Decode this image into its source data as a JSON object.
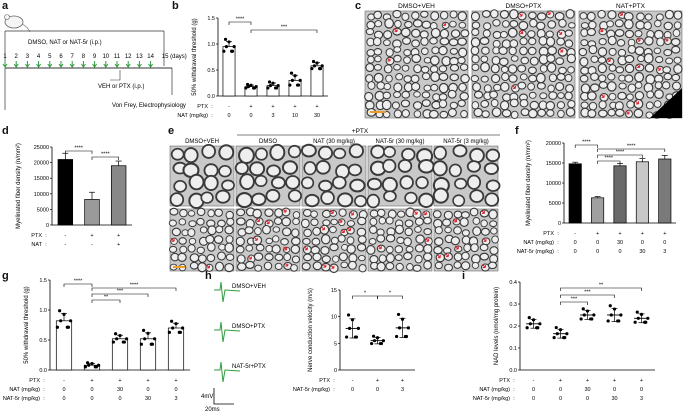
{
  "panels": {
    "a": {
      "label": "a",
      "treatment": "DMSO, NAT or NAT-5r (i.p.)",
      "days": [
        "1",
        "2",
        "3",
        "4",
        "5",
        "6",
        "7",
        "8",
        "9",
        "10",
        "11",
        "12",
        "13",
        "14",
        "15 (days)"
      ],
      "ptx": "VEH or PTX (i.p.)",
      "test": "Von Frey, Electrophysiology"
    },
    "b": {
      "label": "b",
      "ylabel": "50% withdrawal threshold (g)",
      "yticks": [
        "0.0",
        "0.5",
        "1.0",
        "1.5"
      ],
      "row1_label": "PTX",
      "row1": [
        "-",
        "+",
        "+",
        "+",
        "+"
      ],
      "row2_label": "NAT (mg/kg)",
      "row2": [
        "0",
        "0",
        "3",
        "10",
        "30"
      ],
      "sig": [
        "****",
        "***"
      ]
    },
    "c": {
      "label": "c",
      "titles": [
        "DMSO+VEH",
        "DMSO+PTX",
        "NAT+PTX"
      ]
    },
    "d": {
      "label": "d",
      "ylabel": "Myelinated fiber density (n/mm²)",
      "yticks": [
        "0",
        "5000",
        "10000",
        "15000",
        "20000",
        "25000"
      ],
      "row1_label": "PTX",
      "row1": [
        "-",
        "+",
        "+"
      ],
      "row2_label": "NAT",
      "row2": [
        "-",
        "-",
        "+"
      ],
      "sig": [
        "****",
        "****"
      ]
    },
    "e": {
      "label": "e",
      "group": "+PTX",
      "titles": [
        "DMSO+VEH",
        "DMSO",
        "NAT (30 mg/kg)",
        "NAT-5r (30 mg/kg)",
        "NAT-5r (3 mg/kg)"
      ]
    },
    "f": {
      "label": "f",
      "ylabel": "Myelinated fiber density (n/mm²)",
      "yticks": [
        "0",
        "5000",
        "10000",
        "15000",
        "20000"
      ],
      "row1_label": "PTX",
      "row1": [
        "-",
        "+",
        "+",
        "+",
        "+"
      ],
      "row2_label": "NAT (mg/kg)",
      "row2": [
        "0",
        "0",
        "30",
        "0",
        "0"
      ],
      "row3_label": "NAT-5r (mg/kg)",
      "row3": [
        "0",
        "0",
        "0",
        "30",
        "3"
      ],
      "sig": [
        "****",
        "****",
        "****",
        "****"
      ]
    },
    "g": {
      "label": "g",
      "ylabel": "50% withdrawal threshold (g)",
      "yticks": [
        "0.0",
        "0.5",
        "1.0",
        "1.5"
      ],
      "row1_label": "PTX",
      "row1": [
        "-",
        "+",
        "+",
        "+",
        "+"
      ],
      "row2_label": "NAT (mg/kg)",
      "row2": [
        "0",
        "0",
        "30",
        "0",
        "0"
      ],
      "row3_label": "NAT-5r (mg/kg)",
      "row3": [
        "0",
        "0",
        "0",
        "30",
        "3"
      ],
      "sig": [
        "****",
        "**",
        "***",
        "****"
      ]
    },
    "h": {
      "label": "h",
      "traces": [
        "DMSO+VEH",
        "DMSO+PTX",
        "NAT-5r+PTX"
      ],
      "scale_v": "4mV",
      "scale_t": "20ms",
      "ylabel": "Nerve conduction velocity (m/s)",
      "yticks": [
        "0",
        "5",
        "10",
        "15"
      ],
      "row1_label": "PTX",
      "row1": [
        "-",
        "+",
        "+"
      ],
      "row2_label": "NAT-5r (mg/kg)",
      "row2": [
        "0",
        "0",
        "3"
      ],
      "sig": [
        "*",
        "*"
      ]
    },
    "i": {
      "label": "i",
      "ylabel": "NAD levels (nmol/mg protein)",
      "yticks": [
        "0.0",
        "0.1",
        "0.2",
        "0.3",
        "0.4"
      ],
      "row1_label": "PTX",
      "row1": [
        "-",
        "+",
        "+",
        "+",
        "+"
      ],
      "row2_label": "NAT (mg/kg)",
      "row2": [
        "0",
        "0",
        "30",
        "0",
        "0"
      ],
      "row3_label": "NAT-5r (mg/kg)",
      "row3": [
        "0",
        "0",
        "0",
        "30",
        "3"
      ],
      "sig": [
        "***",
        "***",
        "**"
      ]
    }
  },
  "chart_data": [
    {
      "panel": "b",
      "type": "bar",
      "categories": [
        "PTX- NAT0",
        "PTX+ NAT0",
        "PTX+ NAT3",
        "PTX+ NAT10",
        "PTX+ NAT30"
      ],
      "values": [
        0.95,
        0.18,
        0.2,
        0.3,
        0.58
      ],
      "errors": [
        0.1,
        0.03,
        0.05,
        0.1,
        0.06
      ],
      "ylim": [
        0,
        1.5
      ],
      "ylabel": "50% withdrawal threshold (g)",
      "bar_colors": [
        "#ffffff",
        "#ffffff",
        "#ffffff",
        "#ffffff",
        "#ffffff"
      ]
    },
    {
      "panel": "d",
      "type": "bar",
      "categories": [
        "PTX- NAT-",
        "PTX+ NAT-",
        "PTX+ NAT+"
      ],
      "values": [
        21000,
        8200,
        19000
      ],
      "errors": [
        2000,
        2300,
        1500
      ],
      "ylim": [
        0,
        25000
      ],
      "ylabel": "Myelinated fiber density (n/mm²)",
      "bar_colors": [
        "#000000",
        "#9a9a9a",
        "#888888"
      ]
    },
    {
      "panel": "f",
      "type": "bar",
      "categories": [
        "ctrl",
        "PTX",
        "PTX+NAT30",
        "PTX+NAT-5r30",
        "PTX+NAT-5r3"
      ],
      "values": [
        14800,
        6300,
        14300,
        15300,
        16000
      ],
      "errors": [
        400,
        300,
        600,
        800,
        900
      ],
      "ylim": [
        0,
        20000
      ],
      "ylabel": "Myelinated fiber density (n/mm²)",
      "bar_colors": [
        "#000000",
        "#a0a0a0",
        "#6a6a6a",
        "#c8c8c8",
        "#7a7a7a"
      ]
    },
    {
      "panel": "g",
      "type": "bar",
      "categories": [
        "ctrl",
        "PTX",
        "PTX+NAT30",
        "PTX+NAT-5r30",
        "PTX+NAT-5r3"
      ],
      "values": [
        0.82,
        0.08,
        0.52,
        0.52,
        0.7
      ],
      "errors": [
        0.12,
        0.03,
        0.06,
        0.1,
        0.08
      ],
      "ylim": [
        0,
        1.5
      ],
      "ylabel": "50% withdrawal threshold (g)",
      "bar_colors": [
        "#ffffff",
        "#ffffff",
        "#ffffff",
        "#ffffff",
        "#ffffff"
      ]
    },
    {
      "panel": "h",
      "type": "scatter",
      "categories": [
        "ctrl",
        "PTX",
        "PTX+NAT-5r3"
      ],
      "values": [
        7.8,
        5.5,
        7.9
      ],
      "errors": [
        1.8,
        0.6,
        1.8
      ],
      "ylim": [
        0,
        15
      ],
      "ylabel": "Nerve conduction velocity (m/s)"
    },
    {
      "panel": "i",
      "type": "scatter",
      "categories": [
        "ctrl",
        "PTX",
        "PTX+NAT30",
        "PTX+NAT-5r30",
        "PTX+NAT-5r3"
      ],
      "values": [
        0.21,
        0.165,
        0.25,
        0.25,
        0.235
      ],
      "errors": [
        0.02,
        0.02,
        0.02,
        0.03,
        0.02
      ],
      "ylim": [
        0,
        0.4
      ],
      "ylabel": "NAD levels (nmol/mg protein)"
    }
  ]
}
